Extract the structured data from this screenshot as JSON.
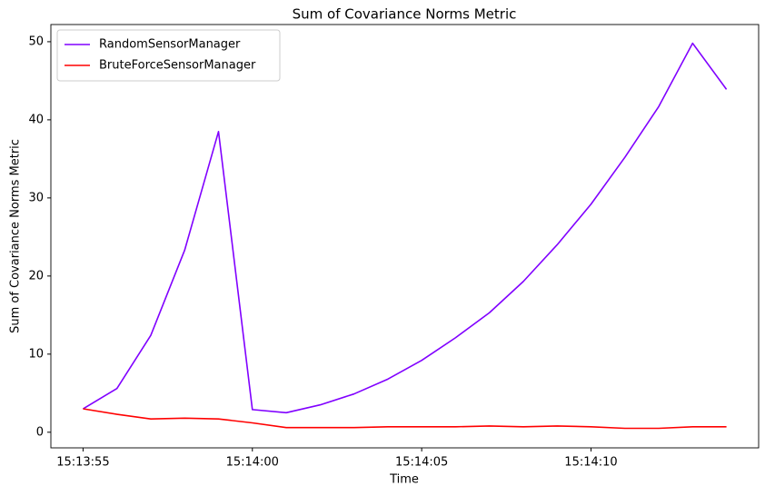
{
  "chart_data": {
    "type": "line",
    "title": "Sum of Covariance Norms Metric",
    "xlabel": "Time",
    "ylabel": "Sum of Covariance Norms Metric",
    "x": [
      "15:13:55",
      "15:13:56",
      "15:13:57",
      "15:13:58",
      "15:13:59",
      "15:14:00",
      "15:14:01",
      "15:14:02",
      "15:14:03",
      "15:14:04",
      "15:14:05",
      "15:14:06",
      "15:14:07",
      "15:14:08",
      "15:14:09",
      "15:14:10",
      "15:14:11",
      "15:14:12",
      "15:14:13",
      "15:14:14"
    ],
    "series": [
      {
        "name": "RandomSensorManager",
        "color": "#8000ff",
        "values": [
          3.0,
          5.6,
          12.4,
          23.3,
          38.5,
          2.9,
          2.5,
          3.5,
          4.9,
          6.8,
          9.2,
          12.1,
          15.3,
          19.3,
          24.0,
          29.2,
          35.2,
          41.7,
          49.8,
          43.9
        ]
      },
      {
        "name": "BruteForceSensorManager",
        "color": "#ff0000",
        "values": [
          3.0,
          2.3,
          1.7,
          1.8,
          1.7,
          1.2,
          0.6,
          0.6,
          0.6,
          0.7,
          0.7,
          0.7,
          0.8,
          0.7,
          0.8,
          0.7,
          0.5,
          0.5,
          0.7,
          0.7
        ]
      }
    ],
    "xlim": [
      "15:13:54.05",
      "15:14:14.95"
    ],
    "xticks": [
      "15:13:55",
      "15:14:00",
      "15:14:05",
      "15:14:10"
    ],
    "ylim": [
      -2.0,
      52.2
    ],
    "yticks": [
      0,
      10,
      20,
      30,
      40,
      50
    ],
    "legend": "upper left",
    "grid": false
  }
}
